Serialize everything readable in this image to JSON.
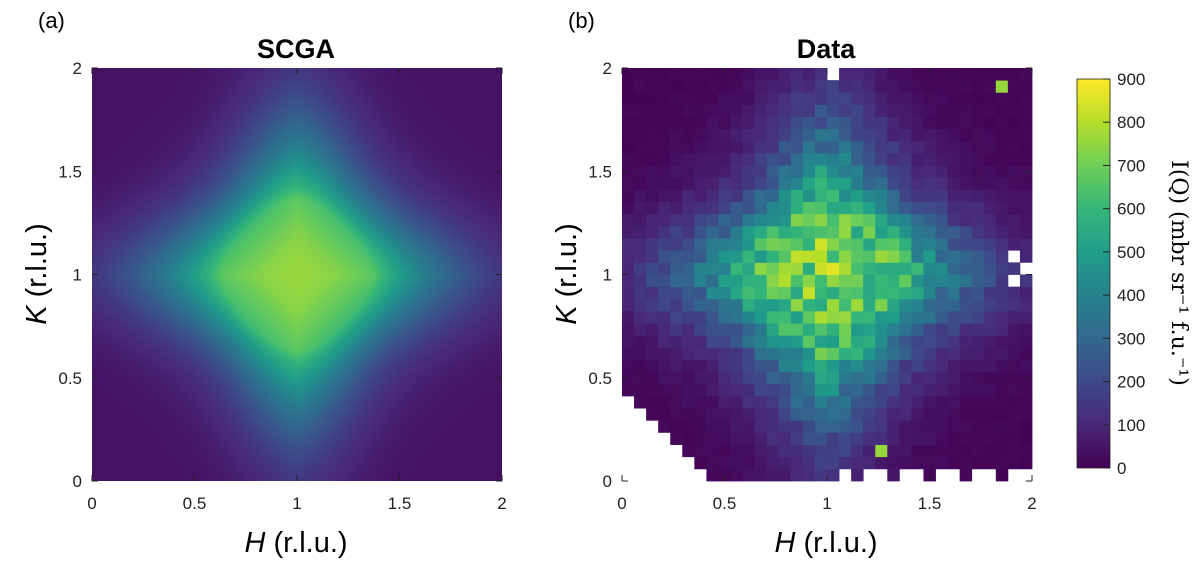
{
  "chart_data": [
    {
      "type": "heatmap",
      "panel_label": "(a)",
      "title": "SCGA",
      "xlabel_var": "H",
      "xlabel_unit": " (r.l.u.)",
      "ylabel_var": "K",
      "ylabel_unit": " (r.l.u.)",
      "xlim": [
        0,
        2
      ],
      "ylim": [
        0,
        2
      ],
      "xticks": [
        "0",
        "0.5",
        "1",
        "1.5",
        "2"
      ],
      "yticks": [
        "0",
        "0.5",
        "1",
        "1.5",
        "2"
      ],
      "xtick_values": [
        0,
        0.5,
        1,
        1.5,
        2
      ],
      "ytick_values": [
        0,
        0.5,
        1,
        1.5,
        2
      ],
      "colormap": "viridis",
      "clim": [
        0,
        900
      ],
      "pattern": "Diamond-shaped intensity maximum centred at (1,1), peak ~750, edges ~50 at corners"
    },
    {
      "type": "heatmap",
      "panel_label": "(b)",
      "title": "Data",
      "xlabel_var": "H",
      "xlabel_unit": " (r.l.u.)",
      "ylabel_var": "K",
      "ylabel_unit": " (r.l.u.)",
      "xlim": [
        0,
        2
      ],
      "ylim": [
        0,
        2
      ],
      "xticks": [
        "0",
        "0.5",
        "1",
        "1.5",
        "2"
      ],
      "yticks": [
        "0",
        "0.5",
        "1",
        "1.5",
        "2"
      ],
      "xtick_values": [
        0,
        0.5,
        1,
        1.5,
        2
      ],
      "ytick_values": [
        0,
        0.5,
        1,
        1.5,
        2
      ],
      "colormap": "viridis",
      "clim": [
        0,
        900
      ],
      "grid_bins": 34,
      "pattern": "Noisy pixelated version of the same diamond pattern; white cells are missing data in lower-left corner, bottom edge and right edge"
    }
  ],
  "colorbar": {
    "label": "I(Q) (mbr sr⁻¹ f.u.⁻¹)",
    "ticks": [
      "0",
      "100",
      "200",
      "300",
      "400",
      "500",
      "600",
      "700",
      "800",
      "900"
    ],
    "tick_values": [
      0,
      100,
      200,
      300,
      400,
      500,
      600,
      700,
      800,
      900
    ],
    "range": [
      0,
      900
    ]
  },
  "colors": {
    "viridis": [
      "#440154",
      "#482878",
      "#3e4989",
      "#31688e",
      "#26828e",
      "#1f9e89",
      "#35b779",
      "#6ece58",
      "#b5de2b",
      "#fde725"
    ]
  }
}
